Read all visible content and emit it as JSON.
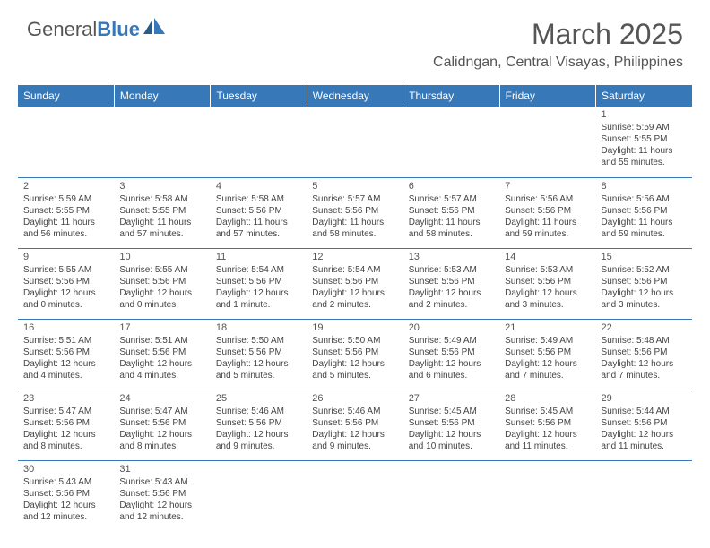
{
  "logo": {
    "part1": "General",
    "part2": "Blue"
  },
  "title": "March 2025",
  "location": "Calidngan, Central Visayas, Philippines",
  "colors": {
    "header_bg": "#3678b8",
    "text": "#555555",
    "cell_text": "#444444"
  },
  "weekdays": [
    "Sunday",
    "Monday",
    "Tuesday",
    "Wednesday",
    "Thursday",
    "Friday",
    "Saturday"
  ],
  "grid": [
    [
      null,
      null,
      null,
      null,
      null,
      null,
      {
        "day": "1",
        "sunrise": "Sunrise: 5:59 AM",
        "sunset": "Sunset: 5:55 PM",
        "daylight": "Daylight: 11 hours and 55 minutes."
      }
    ],
    [
      {
        "day": "2",
        "sunrise": "Sunrise: 5:59 AM",
        "sunset": "Sunset: 5:55 PM",
        "daylight": "Daylight: 11 hours and 56 minutes."
      },
      {
        "day": "3",
        "sunrise": "Sunrise: 5:58 AM",
        "sunset": "Sunset: 5:55 PM",
        "daylight": "Daylight: 11 hours and 57 minutes."
      },
      {
        "day": "4",
        "sunrise": "Sunrise: 5:58 AM",
        "sunset": "Sunset: 5:56 PM",
        "daylight": "Daylight: 11 hours and 57 minutes."
      },
      {
        "day": "5",
        "sunrise": "Sunrise: 5:57 AM",
        "sunset": "Sunset: 5:56 PM",
        "daylight": "Daylight: 11 hours and 58 minutes."
      },
      {
        "day": "6",
        "sunrise": "Sunrise: 5:57 AM",
        "sunset": "Sunset: 5:56 PM",
        "daylight": "Daylight: 11 hours and 58 minutes."
      },
      {
        "day": "7",
        "sunrise": "Sunrise: 5:56 AM",
        "sunset": "Sunset: 5:56 PM",
        "daylight": "Daylight: 11 hours and 59 minutes."
      },
      {
        "day": "8",
        "sunrise": "Sunrise: 5:56 AM",
        "sunset": "Sunset: 5:56 PM",
        "daylight": "Daylight: 11 hours and 59 minutes."
      }
    ],
    [
      {
        "day": "9",
        "sunrise": "Sunrise: 5:55 AM",
        "sunset": "Sunset: 5:56 PM",
        "daylight": "Daylight: 12 hours and 0 minutes."
      },
      {
        "day": "10",
        "sunrise": "Sunrise: 5:55 AM",
        "sunset": "Sunset: 5:56 PM",
        "daylight": "Daylight: 12 hours and 0 minutes."
      },
      {
        "day": "11",
        "sunrise": "Sunrise: 5:54 AM",
        "sunset": "Sunset: 5:56 PM",
        "daylight": "Daylight: 12 hours and 1 minute."
      },
      {
        "day": "12",
        "sunrise": "Sunrise: 5:54 AM",
        "sunset": "Sunset: 5:56 PM",
        "daylight": "Daylight: 12 hours and 2 minutes."
      },
      {
        "day": "13",
        "sunrise": "Sunrise: 5:53 AM",
        "sunset": "Sunset: 5:56 PM",
        "daylight": "Daylight: 12 hours and 2 minutes."
      },
      {
        "day": "14",
        "sunrise": "Sunrise: 5:53 AM",
        "sunset": "Sunset: 5:56 PM",
        "daylight": "Daylight: 12 hours and 3 minutes."
      },
      {
        "day": "15",
        "sunrise": "Sunrise: 5:52 AM",
        "sunset": "Sunset: 5:56 PM",
        "daylight": "Daylight: 12 hours and 3 minutes."
      }
    ],
    [
      {
        "day": "16",
        "sunrise": "Sunrise: 5:51 AM",
        "sunset": "Sunset: 5:56 PM",
        "daylight": "Daylight: 12 hours and 4 minutes."
      },
      {
        "day": "17",
        "sunrise": "Sunrise: 5:51 AM",
        "sunset": "Sunset: 5:56 PM",
        "daylight": "Daylight: 12 hours and 4 minutes."
      },
      {
        "day": "18",
        "sunrise": "Sunrise: 5:50 AM",
        "sunset": "Sunset: 5:56 PM",
        "daylight": "Daylight: 12 hours and 5 minutes."
      },
      {
        "day": "19",
        "sunrise": "Sunrise: 5:50 AM",
        "sunset": "Sunset: 5:56 PM",
        "daylight": "Daylight: 12 hours and 5 minutes."
      },
      {
        "day": "20",
        "sunrise": "Sunrise: 5:49 AM",
        "sunset": "Sunset: 5:56 PM",
        "daylight": "Daylight: 12 hours and 6 minutes."
      },
      {
        "day": "21",
        "sunrise": "Sunrise: 5:49 AM",
        "sunset": "Sunset: 5:56 PM",
        "daylight": "Daylight: 12 hours and 7 minutes."
      },
      {
        "day": "22",
        "sunrise": "Sunrise: 5:48 AM",
        "sunset": "Sunset: 5:56 PM",
        "daylight": "Daylight: 12 hours and 7 minutes."
      }
    ],
    [
      {
        "day": "23",
        "sunrise": "Sunrise: 5:47 AM",
        "sunset": "Sunset: 5:56 PM",
        "daylight": "Daylight: 12 hours and 8 minutes."
      },
      {
        "day": "24",
        "sunrise": "Sunrise: 5:47 AM",
        "sunset": "Sunset: 5:56 PM",
        "daylight": "Daylight: 12 hours and 8 minutes."
      },
      {
        "day": "25",
        "sunrise": "Sunrise: 5:46 AM",
        "sunset": "Sunset: 5:56 PM",
        "daylight": "Daylight: 12 hours and 9 minutes."
      },
      {
        "day": "26",
        "sunrise": "Sunrise: 5:46 AM",
        "sunset": "Sunset: 5:56 PM",
        "daylight": "Daylight: 12 hours and 9 minutes."
      },
      {
        "day": "27",
        "sunrise": "Sunrise: 5:45 AM",
        "sunset": "Sunset: 5:56 PM",
        "daylight": "Daylight: 12 hours and 10 minutes."
      },
      {
        "day": "28",
        "sunrise": "Sunrise: 5:45 AM",
        "sunset": "Sunset: 5:56 PM",
        "daylight": "Daylight: 12 hours and 11 minutes."
      },
      {
        "day": "29",
        "sunrise": "Sunrise: 5:44 AM",
        "sunset": "Sunset: 5:56 PM",
        "daylight": "Daylight: 12 hours and 11 minutes."
      }
    ],
    [
      {
        "day": "30",
        "sunrise": "Sunrise: 5:43 AM",
        "sunset": "Sunset: 5:56 PM",
        "daylight": "Daylight: 12 hours and 12 minutes."
      },
      {
        "day": "31",
        "sunrise": "Sunrise: 5:43 AM",
        "sunset": "Sunset: 5:56 PM",
        "daylight": "Daylight: 12 hours and 12 minutes."
      },
      null,
      null,
      null,
      null,
      null
    ]
  ]
}
